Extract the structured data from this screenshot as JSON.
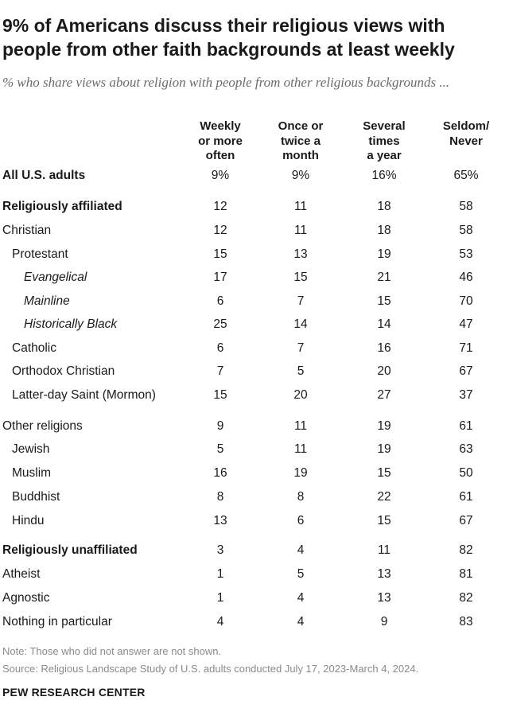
{
  "title": "9% of Americans discuss their religious views with people from other faith backgrounds at least weekly",
  "subtitle": "% who share views about religion with people from other religious backgrounds ...",
  "chart_data": {
    "type": "table",
    "columns": [
      {
        "lines": [
          "Weekly",
          "or more",
          "often"
        ]
      },
      {
        "lines": [
          "Once or",
          "twice a",
          "month"
        ]
      },
      {
        "lines": [
          "Several",
          "times",
          "a year"
        ]
      },
      {
        "lines": [
          "Seldom/",
          "Never"
        ]
      }
    ],
    "rows": [
      {
        "label": "All U.S. adults",
        "values": [
          "9%",
          "9%",
          "16%",
          "65%"
        ],
        "style": "bold",
        "indent": 0
      },
      {
        "label": "Religiously affiliated",
        "values": [
          "12",
          "11",
          "18",
          "58"
        ],
        "style": "bold",
        "indent": 0
      },
      {
        "label": "Christian",
        "values": [
          "12",
          "11",
          "18",
          "58"
        ],
        "style": "normal",
        "indent": 0
      },
      {
        "label": "Protestant",
        "values": [
          "15",
          "13",
          "19",
          "53"
        ],
        "style": "normal",
        "indent": 1
      },
      {
        "label": "Evangelical",
        "values": [
          "17",
          "15",
          "21",
          "46"
        ],
        "style": "italic",
        "indent": 2
      },
      {
        "label": "Mainline",
        "values": [
          "6",
          "7",
          "15",
          "70"
        ],
        "style": "italic",
        "indent": 2
      },
      {
        "label": "Historically Black",
        "values": [
          "25",
          "14",
          "14",
          "47"
        ],
        "style": "italic",
        "indent": 2
      },
      {
        "label": "Catholic",
        "values": [
          "6",
          "7",
          "16",
          "71"
        ],
        "style": "normal",
        "indent": 1
      },
      {
        "label": "Orthodox Christian",
        "values": [
          "7",
          "5",
          "20",
          "67"
        ],
        "style": "normal",
        "indent": 1
      },
      {
        "label": "Latter-day Saint (Mormon)",
        "values": [
          "15",
          "20",
          "27",
          "37"
        ],
        "style": "normal",
        "indent": 1
      },
      {
        "label": "Other religions",
        "values": [
          "9",
          "11",
          "19",
          "61"
        ],
        "style": "normal",
        "indent": 0
      },
      {
        "label": "Jewish",
        "values": [
          "5",
          "11",
          "19",
          "63"
        ],
        "style": "normal",
        "indent": 1
      },
      {
        "label": "Muslim",
        "values": [
          "16",
          "19",
          "15",
          "50"
        ],
        "style": "normal",
        "indent": 1
      },
      {
        "label": "Buddhist",
        "values": [
          "8",
          "8",
          "22",
          "61"
        ],
        "style": "normal",
        "indent": 1
      },
      {
        "label": "Hindu",
        "values": [
          "13",
          "6",
          "15",
          "67"
        ],
        "style": "normal",
        "indent": 1
      },
      {
        "label": "Religiously unaffiliated",
        "values": [
          "3",
          "4",
          "11",
          "82"
        ],
        "style": "bold",
        "indent": 0
      },
      {
        "label": "Atheist",
        "values": [
          "1",
          "5",
          "13",
          "81"
        ],
        "style": "normal",
        "indent": 0
      },
      {
        "label": "Agnostic",
        "values": [
          "1",
          "4",
          "13",
          "82"
        ],
        "style": "normal",
        "indent": 0
      },
      {
        "label": "Nothing in particular",
        "values": [
          "4",
          "4",
          "9",
          "83"
        ],
        "style": "normal",
        "indent": 0
      }
    ]
  },
  "note": "Note: Those who did not answer are not shown.",
  "source": "Source: Religious Landscape Study of U.S. adults conducted July 17, 2023-March 4, 2024.",
  "brand": "PEW RESEARCH CENTER",
  "colors": {
    "text": "#1a1a1a",
    "subtitle": "#6b6b6b",
    "footnote": "#8a8a8a"
  }
}
